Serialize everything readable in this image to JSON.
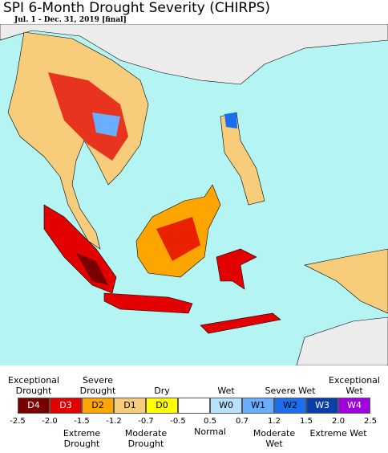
{
  "title": "SPI 6-Month Drought Severity (CHIRPS)",
  "subtitle": "Jul. 1 - Dec. 31, 2019 [final]",
  "legend": {
    "swatches": [
      {
        "label": "D4",
        "color": "#7a0000"
      },
      {
        "label": "D3",
        "color": "#e30000"
      },
      {
        "label": "D2",
        "color": "#ffa500"
      },
      {
        "label": "D1",
        "color": "#f7cd7c"
      },
      {
        "label": "D0",
        "color": "#ffff00"
      },
      {
        "label": null,
        "color": "#ffffff"
      },
      {
        "label": "W0",
        "color": "#b6e2ff"
      },
      {
        "label": "W1",
        "color": "#6aaeff"
      },
      {
        "label": "W2",
        "color": "#1a6ef0"
      },
      {
        "label": "W3",
        "color": "#0a3ea8"
      },
      {
        "label": "W4",
        "color": "#a000e0"
      }
    ],
    "ticks": [
      -2.5,
      {
        "value": -2,
        "label": "-2.0"
      },
      -1.5,
      -1.2,
      -0.7,
      -0.5,
      0.5,
      0.7,
      1.2,
      1.5,
      {
        "value": 2,
        "label": "2.0"
      },
      2.5
    ],
    "labels_above": [
      "Exceptional Drought",
      "Severe Drought",
      "Dry",
      "Wet",
      "Severe Wet",
      "Exceptional Wet"
    ],
    "labels_below": [
      "Extreme Drought",
      "Moderate Drought",
      "Normal",
      "Moderate Wet",
      "Extreme Wet"
    ]
  }
}
